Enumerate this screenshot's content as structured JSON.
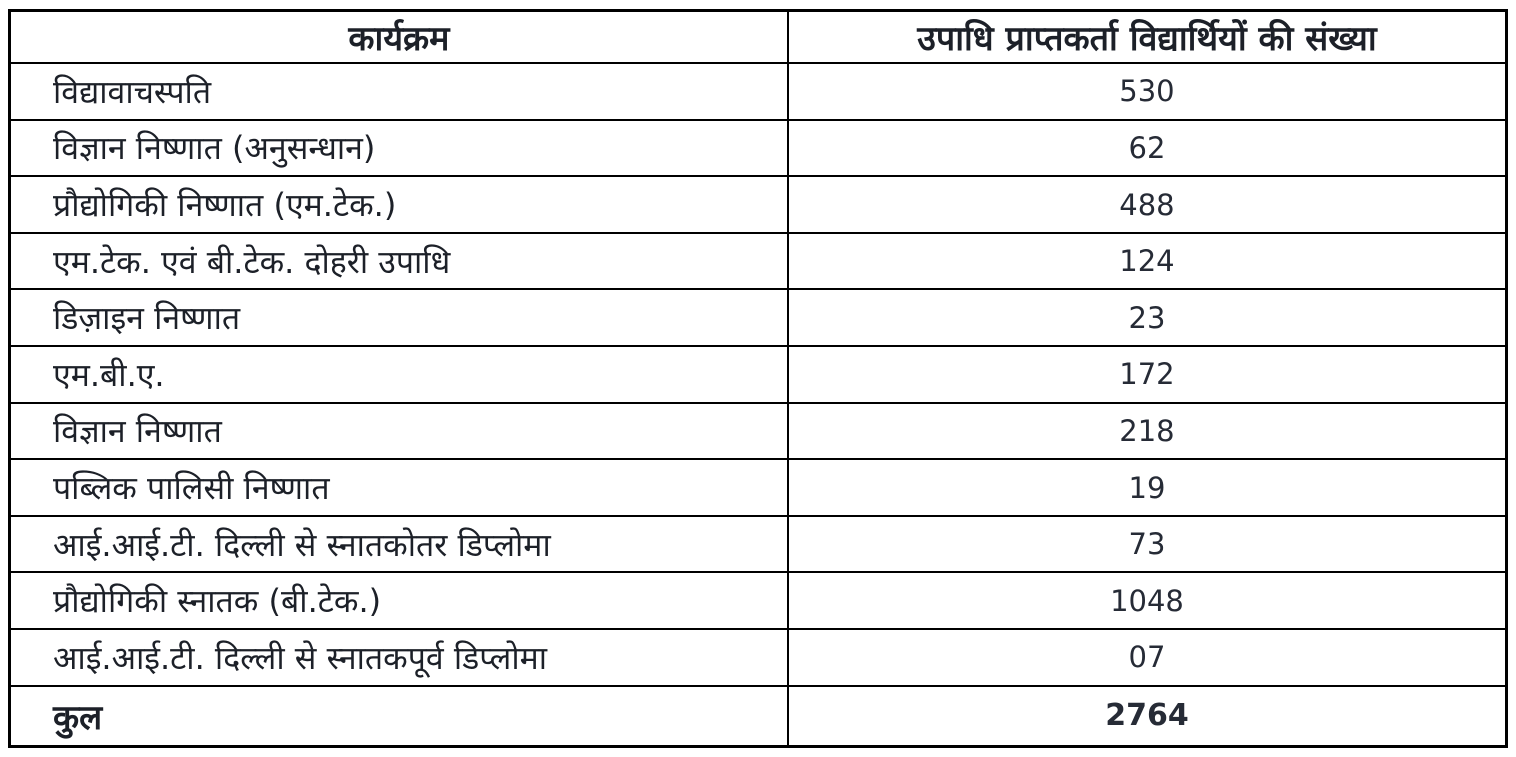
{
  "table": {
    "headers": {
      "program": "कार्यक्रम",
      "count": "उपाधि प्राप्तकर्ता विद्यार्थियों की संख्या"
    },
    "rows": [
      {
        "program": "विद्यावाचस्पति",
        "count": "530"
      },
      {
        "program": "विज्ञान निष्णात (अनुसन्धान)",
        "count": "62"
      },
      {
        "program": "प्रौद्योगिकी निष्णात (एम.टेक.)",
        "count": "488"
      },
      {
        "program": "एम.टेक. एवं बी.टेक. दोहरी उपाधि",
        "count": "124"
      },
      {
        "program": "डिज़ाइन निष्णात",
        "count": "23"
      },
      {
        "program": "एम.बी.ए.",
        "count": "172"
      },
      {
        "program": "विज्ञान निष्णात",
        "count": "218"
      },
      {
        "program": "पब्लिक पालिसी निष्णात",
        "count": "19"
      },
      {
        "program": "आई.आई.टी. दिल्ली से स्नातकोतर डिप्लोमा",
        "count": "73"
      },
      {
        "program": "प्रौद्योगिकी स्नातक  (बी.टेक.)",
        "count": "1048"
      },
      {
        "program": "आई.आई.टी. दिल्ली से स्नातकपूर्व डिप्लोमा",
        "count": "07"
      }
    ],
    "total": {
      "program": "कुल",
      "count": "2764"
    }
  },
  "chart_data": {
    "type": "table",
    "title": "उपाधि प्राप्तकर्ता विद्यार्थियों की संख्या",
    "categories": [
      "विद्यावाचस्पति",
      "विज्ञान निष्णात (अनुसन्धान)",
      "प्रौद्योगिकी निष्णात (एम.टेक.)",
      "एम.टेक. एवं बी.टेक. दोहरी उपाधि",
      "डिज़ाइन निष्णात",
      "एम.बी.ए.",
      "विज्ञान निष्णात",
      "पब्लिक पालिसी निष्णात",
      "आई.आई.टी. दिल्ली से स्नातकोतर डिप्लोमा",
      "प्रौद्योगिकी स्नातक (बी.टेक.)",
      "आई.आई.टी. दिल्ली से स्नातकपूर्व डिप्लोमा"
    ],
    "values": [
      530,
      62,
      488,
      124,
      23,
      172,
      218,
      19,
      73,
      1048,
      7
    ],
    "total": 2764
  }
}
